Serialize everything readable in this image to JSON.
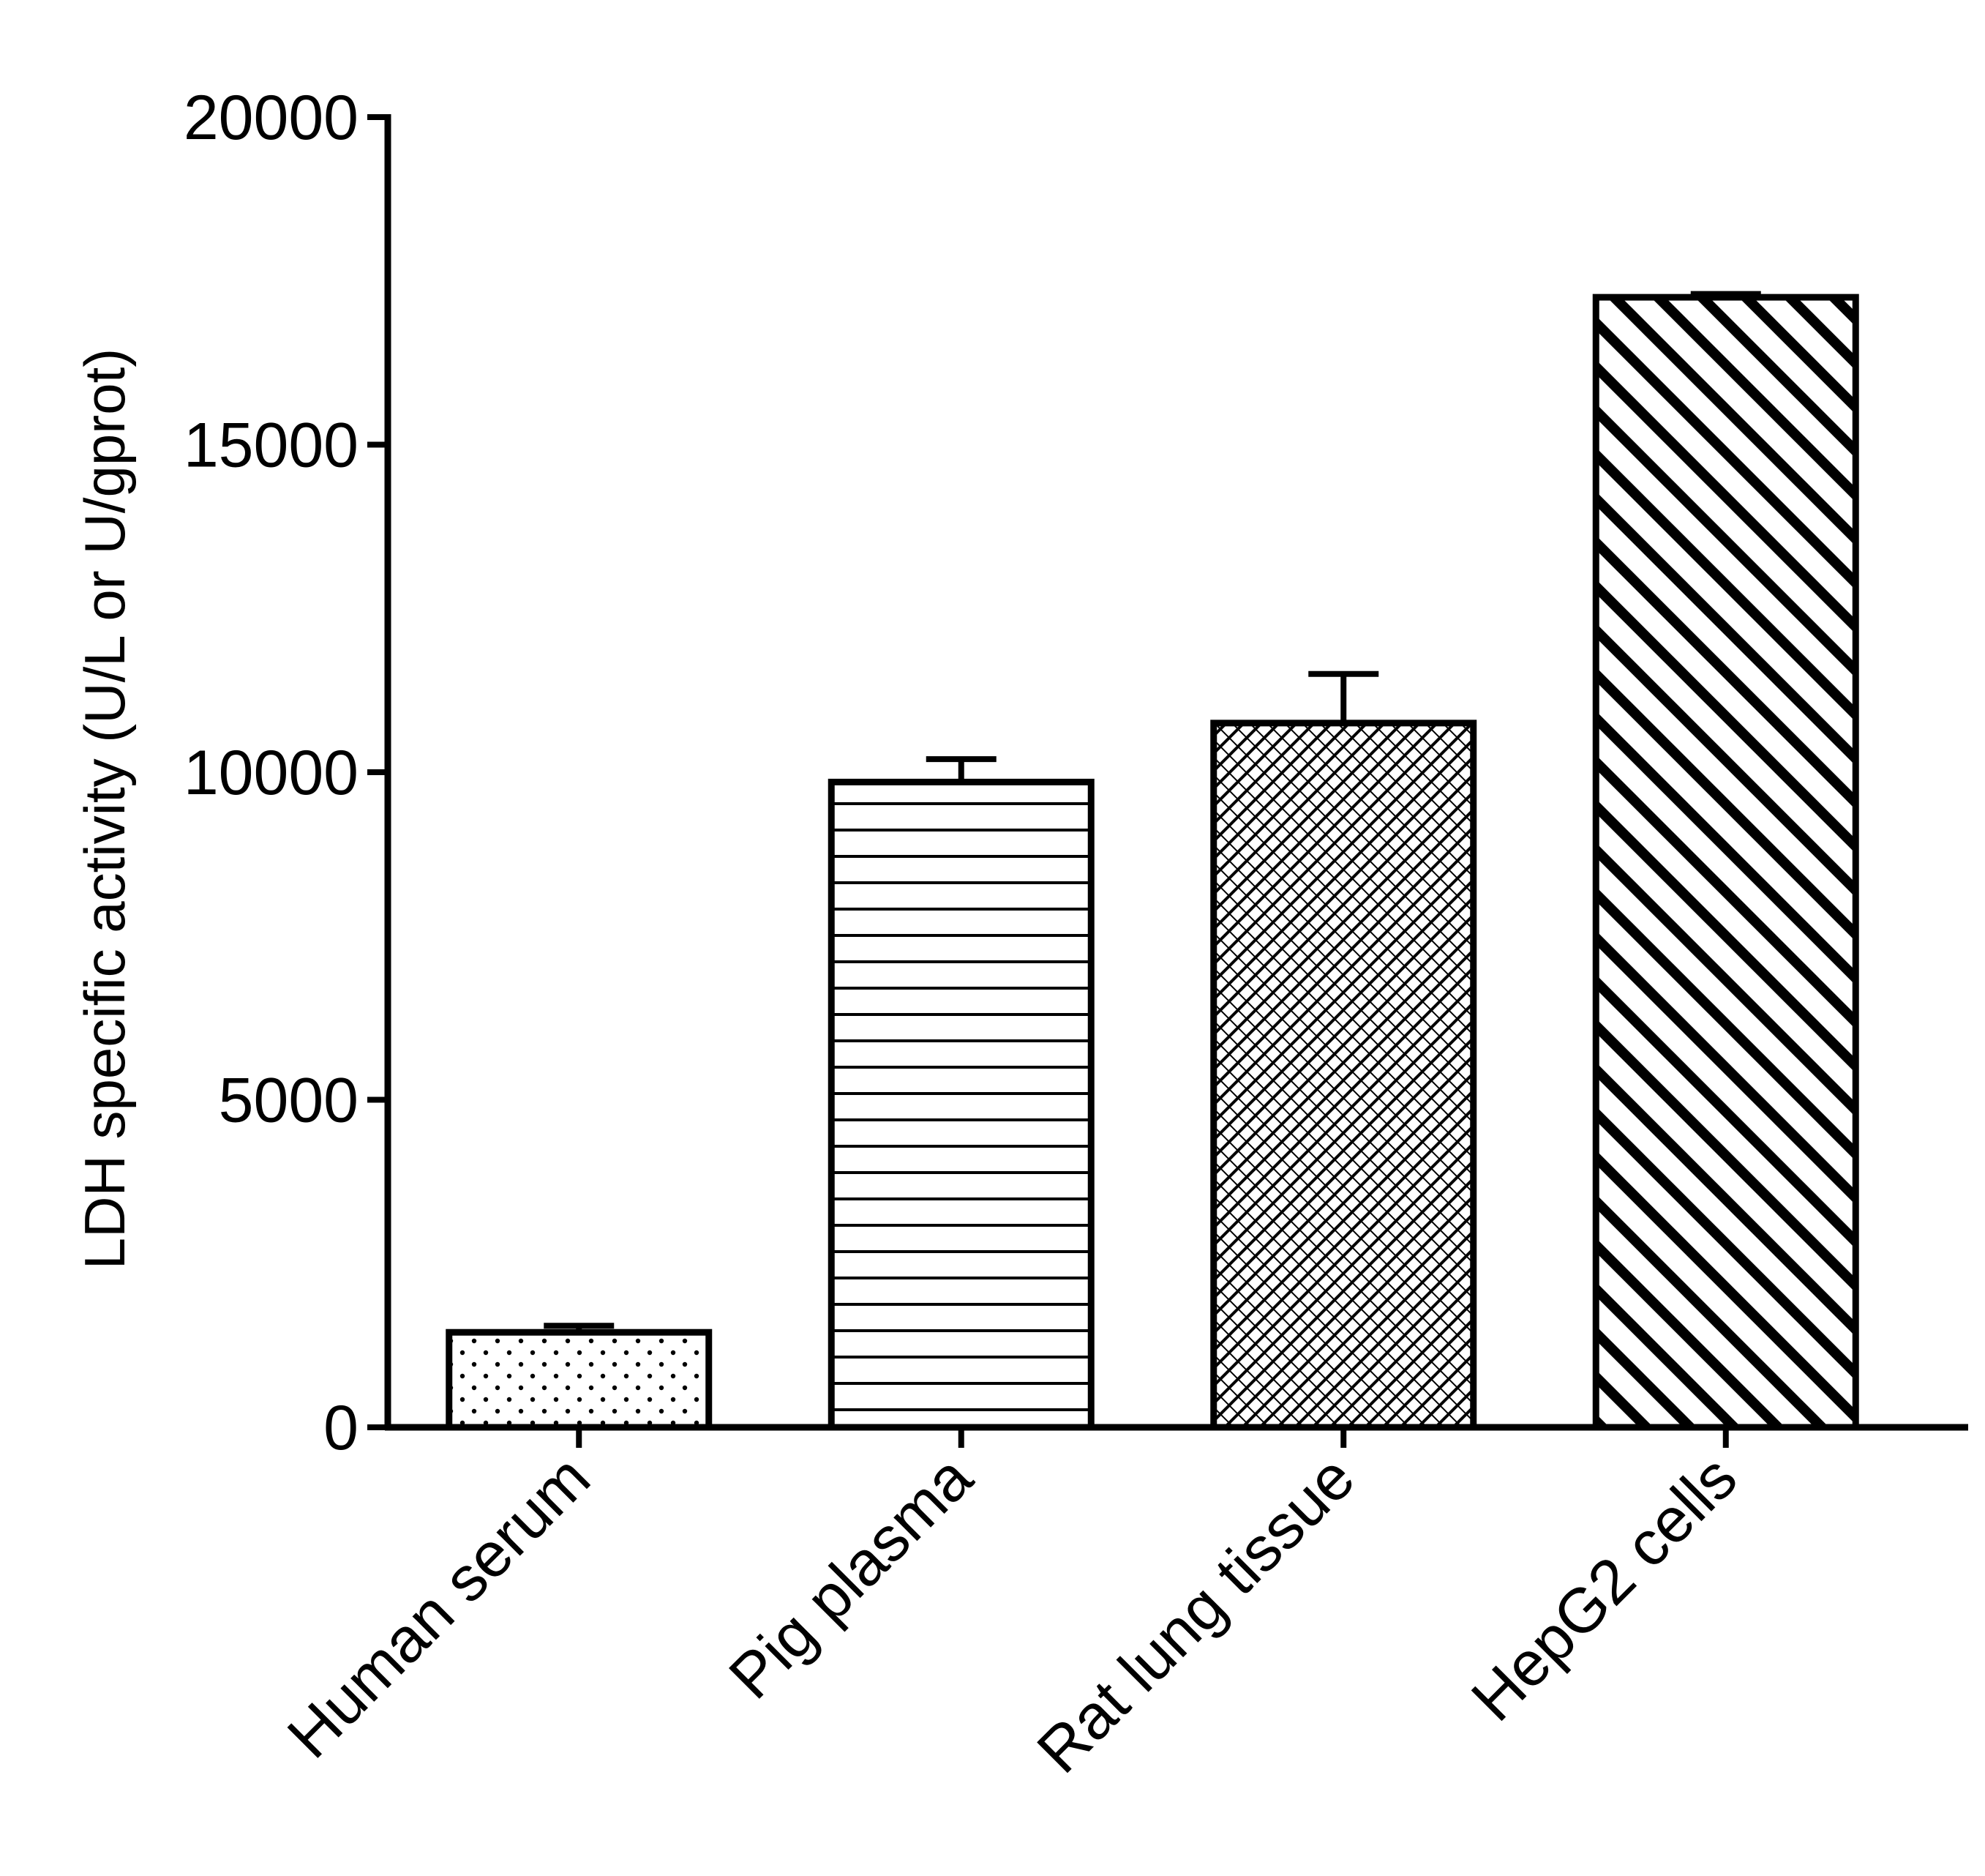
{
  "chart_data": {
    "type": "bar",
    "title": "",
    "xlabel": "",
    "ylabel": "LDH specific activity (U/L or U/gprot)",
    "categories": [
      "Human serum",
      "Pig plasma",
      "Rat lung tissue",
      "HepG2 cells"
    ],
    "values": [
      1450,
      9850,
      10750,
      17250
    ],
    "errors": [
      100,
      350,
      750,
      50
    ],
    "ylim": [
      0,
      20000
    ],
    "yticks": [
      0,
      5000,
      10000,
      15000,
      20000
    ],
    "ytick_labels": [
      "0",
      "5000",
      "10000",
      "15000",
      "20000"
    ],
    "patterns": [
      "dots",
      "horizontal-lines",
      "crosshatch",
      "diagonal-lines"
    ],
    "colors": {
      "stroke": "#000000",
      "fill": "#ffffff"
    },
    "grid": false,
    "legend": "none"
  }
}
